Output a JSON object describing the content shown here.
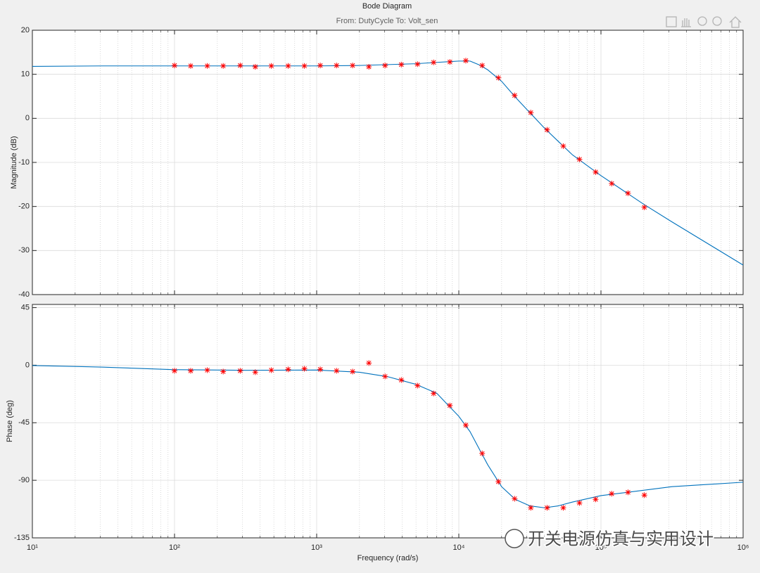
{
  "chart_data": [
    {
      "type": "line",
      "title": "Bode Diagram",
      "subtitle": "From: DutyCycle  To: Volt_sen",
      "ylabel": "Magnitude (dB)",
      "xscale": "log",
      "xlim": [
        10,
        1000000
      ],
      "xticks": [
        10,
        100,
        1000,
        10000,
        100000,
        1000000
      ],
      "ylim": [
        -40,
        20
      ],
      "yticks": [
        -40,
        -30,
        -20,
        -10,
        0,
        10,
        20
      ],
      "grid": true,
      "series": [
        {
          "color": "#0072bd",
          "x": [
            10,
            31.6,
            100,
            316,
            1000,
            2000,
            3160,
            5000,
            7000,
            10000,
            12000,
            14000,
            16000,
            20000,
            25000,
            31600,
            40000,
            50000,
            63100,
            100000,
            200000,
            316000,
            1000000
          ],
          "values": [
            11.8,
            11.9,
            11.9,
            11.9,
            11.9,
            12.0,
            12.2,
            12.4,
            12.7,
            13.0,
            13.0,
            12.1,
            11.0,
            8.4,
            4.8,
            1.3,
            -2.2,
            -5.2,
            -8.3,
            -13.0,
            -19.5,
            -23.5,
            -33.3
          ]
        },
        {
          "color": "#ff0000",
          "marker": "*",
          "x": [
            100,
            130,
            170,
            220,
            290,
            370,
            480,
            630,
            820,
            1060,
            1380,
            1790,
            2330,
            3030,
            3940,
            5120,
            6650,
            8650,
            11200,
            14600,
            19000,
            24700,
            32100,
            41800,
            54300,
            70600,
            91700,
            119000,
            155000,
            202000
          ],
          "values": [
            12.0,
            11.9,
            11.9,
            11.9,
            12.0,
            11.7,
            11.9,
            11.9,
            11.9,
            12.0,
            12.0,
            12.0,
            11.7,
            12.0,
            12.2,
            12.3,
            12.7,
            12.8,
            13.1,
            12.0,
            9.2,
            5.2,
            1.3,
            -2.6,
            -6.3,
            -9.3,
            -12.2,
            -14.8,
            -17.0,
            -20.2
          ]
        }
      ]
    },
    {
      "type": "line",
      "ylabel": "Phase (deg)",
      "xlabel": "Frequency  (rad/s)",
      "xscale": "log",
      "xlim": [
        10,
        1000000
      ],
      "xticks": [
        {
          "value": 10,
          "label": "10¹"
        },
        {
          "value": 100,
          "label": "10²"
        },
        {
          "value": 1000,
          "label": "10³"
        },
        {
          "value": 10000,
          "label": "10⁴"
        },
        {
          "value": 100000,
          "label": "10⁵"
        },
        {
          "value": 1000000,
          "label": "10⁶"
        }
      ],
      "ylim": [
        -135,
        47.5
      ],
      "yticks": [
        -135,
        -90,
        -45,
        0,
        45
      ],
      "grid": true,
      "series": [
        {
          "color": "#0072bd",
          "x": [
            10,
            31.6,
            100,
            316,
            1000,
            2000,
            3160,
            5000,
            7000,
            10000,
            12000,
            14000,
            16000,
            20000,
            25000,
            31600,
            40000,
            50000,
            63100,
            100000,
            316000,
            1000000
          ],
          "values": [
            -0.3,
            -1.5,
            -3.5,
            -4.0,
            -3.8,
            -5.5,
            -9,
            -15,
            -22,
            -40,
            -52,
            -66,
            -78,
            -95,
            -105,
            -110,
            -111.5,
            -110,
            -107,
            -102,
            -95,
            -91.5
          ]
        },
        {
          "color": "#ff0000",
          "marker": "*",
          "x": [
            100,
            130,
            170,
            220,
            290,
            370,
            480,
            630,
            820,
            1060,
            1380,
            1790,
            2330,
            3030,
            3940,
            5120,
            6650,
            8650,
            11200,
            14600,
            19000,
            24700,
            32100,
            41800,
            54300,
            70600,
            91700,
            119000,
            155000,
            202000
          ],
          "values": [
            -4.4,
            -4.4,
            -3.9,
            -5.0,
            -4.4,
            -5.5,
            -3.9,
            -3.3,
            -2.8,
            -3.3,
            -4.4,
            -5.0,
            1.7,
            -8.8,
            -11.6,
            -16.0,
            -22.1,
            -31.5,
            -46.9,
            -69.0,
            -91.1,
            -104.4,
            -111.5,
            -111.5,
            -111.5,
            -107.7,
            -104.9,
            -100.5,
            -99.4,
            -101.6
          ]
        }
      ]
    }
  ],
  "watermark": "开关电源仿真与实用设计"
}
